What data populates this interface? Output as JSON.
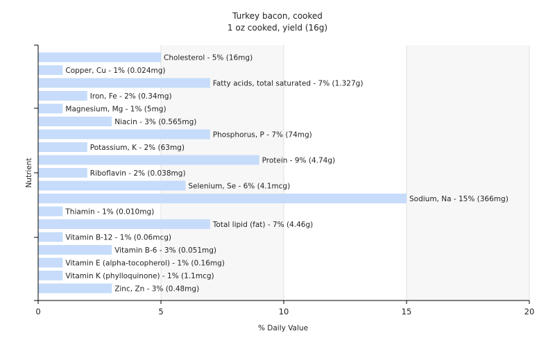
{
  "chart_data": {
    "type": "bar",
    "orientation": "horizontal",
    "title": "Turkey bacon, cooked",
    "subtitle": "1 oz cooked, yield (16g)",
    "xlabel": "% Daily Value",
    "ylabel": "Nutrient",
    "xlim": [
      0,
      20
    ],
    "xticks": [
      0,
      5,
      10,
      15,
      20
    ],
    "grid": true,
    "bar_color": "#c6dcfa",
    "categories": [
      "Cholesterol",
      "Copper, Cu",
      "Fatty acids, total saturated",
      "Iron, Fe",
      "Magnesium, Mg",
      "Niacin",
      "Phosphorus, P",
      "Potassium, K",
      "Protein",
      "Riboflavin",
      "Selenium, Se",
      "Sodium, Na",
      "Thiamin",
      "Total lipid (fat)",
      "Vitamin B-12",
      "Vitamin B-6",
      "Vitamin E (alpha-tocopherol)",
      "Vitamin K (phylloquinone)",
      "Zinc, Zn"
    ],
    "values": [
      5,
      1,
      7,
      2,
      1,
      3,
      7,
      2,
      9,
      2,
      6,
      15,
      1,
      7,
      1,
      3,
      1,
      1,
      3
    ],
    "labels": [
      "Cholesterol - 5% (16mg)",
      "Copper, Cu - 1% (0.024mg)",
      "Fatty acids, total saturated - 7% (1.327g)",
      "Iron, Fe - 2% (0.34mg)",
      "Magnesium, Mg - 1% (5mg)",
      "Niacin - 3% (0.565mg)",
      "Phosphorus, P - 7% (74mg)",
      "Potassium, K - 2% (63mg)",
      "Protein - 9% (4.74g)",
      "Riboflavin - 2% (0.038mg)",
      "Selenium, Se - 6% (4.1mcg)",
      "Sodium, Na - 15% (366mg)",
      "Thiamin - 1% (0.010mg)",
      "Total lipid (fat) - 7% (4.46g)",
      "Vitamin B-12 - 1% (0.06mcg)",
      "Vitamin B-6 - 3% (0.051mg)",
      "Vitamin E (alpha-tocopherol) - 1% (0.16mg)",
      "Vitamin K (phylloquinone) - 1% (1.1mcg)",
      "Zinc, Zn - 3% (0.48mg)"
    ]
  }
}
